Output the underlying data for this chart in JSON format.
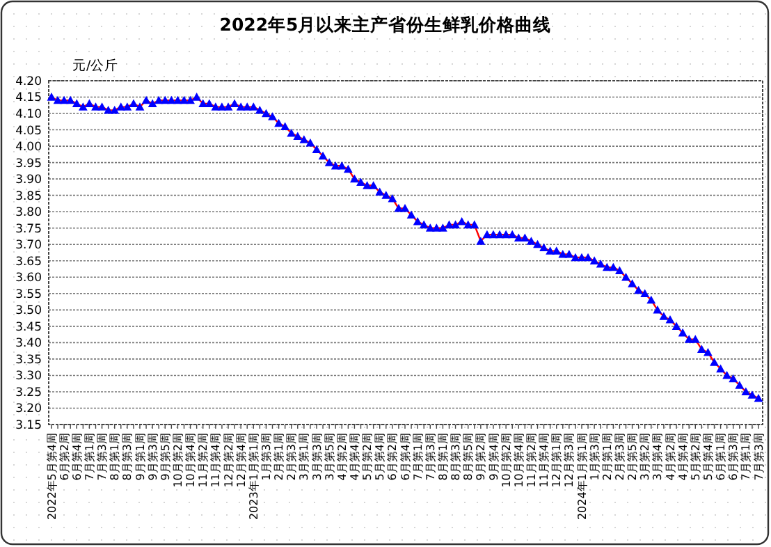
{
  "chart_data": {
    "type": "line",
    "title": "2022年5月以来主产省份生鲜乳价格曲线",
    "ylabel": "元/公斤",
    "categories": [
      "2022年5月第4周",
      null,
      "6月第2周",
      null,
      "6月第4周",
      null,
      "7月第1周",
      null,
      "7月第3周",
      null,
      "8月第1周",
      null,
      "8月第3周",
      null,
      "9月第1周",
      null,
      "9月第3周",
      null,
      "9月第5周",
      null,
      "10月第2周",
      null,
      "10月第4周",
      null,
      "11月第2周",
      null,
      "11月第4周",
      null,
      "12月第2周",
      null,
      "12月第4周",
      null,
      "2023年1月第1周",
      null,
      "1月第3周",
      null,
      "2月第1周",
      null,
      "2月第3周",
      null,
      "3月第1周",
      null,
      "3月第3周",
      null,
      "3月第5周",
      null,
      "4月第2周",
      null,
      "4月第4周",
      null,
      "5月第2周",
      null,
      "5月第4周",
      null,
      "6月第2周",
      null,
      "6月第4周",
      null,
      "7月第1周",
      null,
      "7月第3周",
      null,
      "8月第1周",
      null,
      "8月第3周",
      null,
      "8月第5周",
      null,
      "9月第2周",
      null,
      "9月第4周",
      null,
      "10月第2周",
      null,
      "10月第4周",
      null,
      "11月第2周",
      null,
      "11月第4周",
      null,
      "12月第1周",
      null,
      "12月第3周",
      null,
      "2024年1月第1周",
      null,
      "1月第3周",
      null,
      "2月第1周",
      null,
      "2月第3周",
      null,
      "2月第5周",
      null,
      "3月第2周",
      null,
      "3月第4周",
      null,
      "4月第2周",
      null,
      "4月第4周",
      null,
      "5月第2周",
      null,
      "5月第4周",
      null,
      "6月第1周",
      null,
      "6月第3周",
      null,
      "7月第1周",
      null,
      "7月第3周"
    ],
    "series": [
      {
        "color": "#0000ff",
        "values": [
          4.15,
          4.14,
          4.14,
          4.14,
          4.13,
          4.12,
          4.13,
          4.12,
          4.12,
          4.11,
          4.11,
          4.12,
          4.12,
          4.13,
          4.12,
          4.14,
          4.13,
          4.14,
          4.14,
          4.14,
          4.14,
          4.14,
          4.14,
          4.15,
          4.13,
          4.13,
          4.12,
          4.12,
          4.12,
          4.13,
          4.12,
          4.12,
          4.12,
          4.11,
          4.1,
          4.09,
          4.07,
          4.06,
          4.04,
          4.03,
          4.02,
          4.01,
          3.99,
          3.97,
          3.95,
          3.94,
          3.94,
          3.93,
          3.9,
          3.89,
          3.88,
          3.88,
          3.86,
          3.85,
          3.84,
          3.81,
          3.81,
          3.79,
          3.77,
          3.76,
          3.75,
          3.75,
          3.75,
          3.76,
          3.76,
          3.77,
          3.76,
          3.76,
          3.71,
          3.73,
          3.73,
          3.73,
          3.73,
          3.73,
          3.72,
          3.72,
          3.71,
          3.7,
          3.69,
          3.68,
          3.68,
          3.67,
          3.67,
          3.66,
          3.66,
          3.66,
          3.65,
          3.64,
          3.63,
          3.63,
          3.62,
          3.6,
          3.58,
          3.56,
          3.55,
          3.53,
          3.5,
          3.48,
          3.47,
          3.45,
          3.43,
          3.41,
          3.41,
          3.38,
          3.37,
          3.34,
          3.32,
          3.3,
          3.29,
          3.27,
          3.25,
          3.24,
          3.23
        ]
      }
    ],
    "ylim": [
      3.15,
      4.2
    ],
    "yticks": [
      {
        "value": 3.15,
        "label": "3.15"
      },
      {
        "value": 3.2,
        "label": "3.20"
      },
      {
        "value": 3.25,
        "label": "3.25"
      },
      {
        "value": 3.3,
        "label": "3.30"
      },
      {
        "value": 3.35,
        "label": "3.35"
      },
      {
        "value": 3.4,
        "label": "3.40"
      },
      {
        "value": 3.45,
        "label": "3.45"
      },
      {
        "value": 3.5,
        "label": "3.50"
      },
      {
        "value": 3.55,
        "label": "3.55"
      },
      {
        "value": 3.6,
        "label": "3.60"
      },
      {
        "value": 3.65,
        "label": "3.65"
      },
      {
        "value": 3.7,
        "label": "3.70"
      },
      {
        "value": 3.75,
        "label": "3.75"
      },
      {
        "value": 3.8,
        "label": "3.80"
      },
      {
        "value": 3.85,
        "label": "3.85"
      },
      {
        "value": 3.9,
        "label": "3.90"
      },
      {
        "value": 3.95,
        "label": "3.95"
      },
      {
        "value": 4.0,
        "label": "4.00"
      },
      {
        "value": 4.05,
        "label": "4.05"
      },
      {
        "value": 4.1,
        "label": "4.10"
      },
      {
        "value": 4.15,
        "label": "4.15"
      },
      {
        "value": 4.2,
        "label": "4.20"
      }
    ],
    "grid": "y",
    "marker": "triangle",
    "line_style": "solid"
  }
}
